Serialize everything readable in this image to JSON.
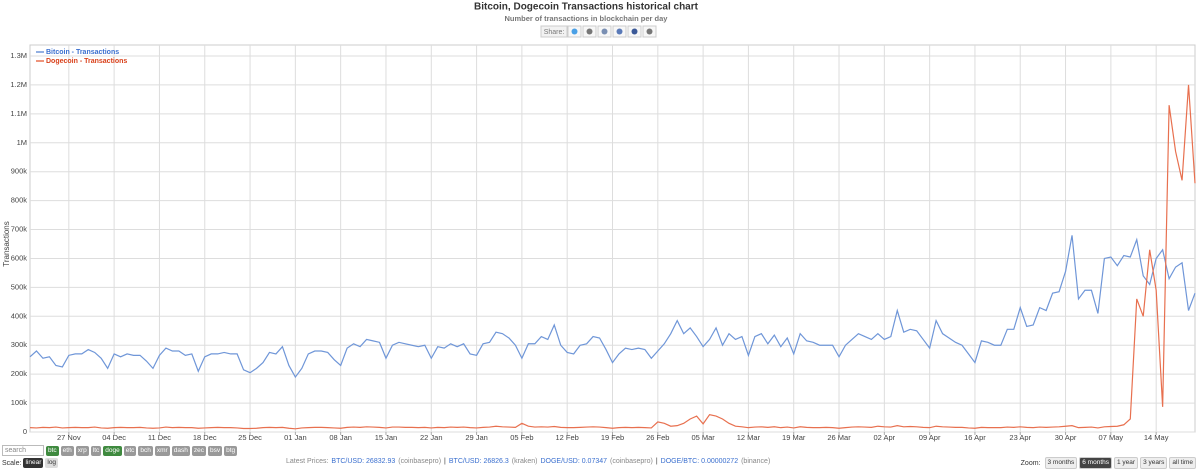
{
  "header": {
    "title": "Bitcoin, Dogecoin Transactions historical chart",
    "subtitle": "Number of transactions in blockchain per day",
    "share": "Share:"
  },
  "chart_data": {
    "type": "line",
    "y_label": "Transactions",
    "grid": true,
    "legend": "top-left",
    "categories": [
      null,
      null,
      null,
      null,
      null,
      null,
      "27 Nov",
      null,
      null,
      null,
      null,
      null,
      null,
      "04 Dec",
      null,
      null,
      null,
      null,
      null,
      null,
      "11 Dec",
      null,
      null,
      null,
      null,
      null,
      null,
      "18 Dec",
      null,
      null,
      null,
      null,
      null,
      null,
      "25 Dec",
      null,
      null,
      null,
      null,
      null,
      null,
      "01 Jan",
      null,
      null,
      null,
      null,
      null,
      null,
      "08 Jan",
      null,
      null,
      null,
      null,
      null,
      null,
      "15 Jan",
      null,
      null,
      null,
      null,
      null,
      null,
      "22 Jan",
      null,
      null,
      null,
      null,
      null,
      null,
      "29 Jan",
      null,
      null,
      null,
      null,
      null,
      null,
      "05 Feb",
      null,
      null,
      null,
      null,
      null,
      null,
      "12 Feb",
      null,
      null,
      null,
      null,
      null,
      null,
      "19 Feb",
      null,
      null,
      null,
      null,
      null,
      null,
      "26 Feb",
      null,
      null,
      null,
      null,
      null,
      null,
      "05 Mar",
      null,
      null,
      null,
      null,
      null,
      null,
      "12 Mar",
      null,
      null,
      null,
      null,
      null,
      null,
      "19 Mar",
      null,
      null,
      null,
      null,
      null,
      null,
      "26 Mar",
      null,
      null,
      null,
      null,
      null,
      null,
      "02 Apr",
      null,
      null,
      null,
      null,
      null,
      null,
      "09 Apr",
      null,
      null,
      null,
      null,
      null,
      null,
      "16 Apr",
      null,
      null,
      null,
      null,
      null,
      null,
      "23 Apr",
      null,
      null,
      null,
      null,
      null,
      null,
      "30 Apr",
      null,
      null,
      null,
      null,
      null,
      null,
      "07 May",
      null,
      null,
      null,
      null,
      null,
      null,
      "14 May",
      null,
      null,
      null,
      null,
      null,
      null
    ],
    "series": [
      {
        "name": "Bitcoin - Transactions",
        "color": "#6f96d8",
        "label_color": "#3a6fcf",
        "values": [
          260000,
          280000,
          255000,
          260000,
          230000,
          225000,
          265000,
          270000,
          270000,
          285000,
          275000,
          255000,
          220000,
          270000,
          260000,
          270000,
          265000,
          265000,
          245000,
          220000,
          265000,
          290000,
          280000,
          280000,
          265000,
          270000,
          210000,
          260000,
          270000,
          270000,
          275000,
          270000,
          270000,
          215000,
          205000,
          220000,
          240000,
          275000,
          270000,
          295000,
          230000,
          190000,
          220000,
          270000,
          280000,
          280000,
          275000,
          250000,
          230000,
          290000,
          305000,
          295000,
          320000,
          315000,
          310000,
          255000,
          300000,
          310000,
          305000,
          300000,
          295000,
          300000,
          255000,
          295000,
          290000,
          305000,
          295000,
          305000,
          270000,
          265000,
          305000,
          310000,
          345000,
          340000,
          325000,
          300000,
          255000,
          305000,
          305000,
          330000,
          320000,
          370000,
          300000,
          275000,
          270000,
          300000,
          305000,
          330000,
          325000,
          285000,
          240000,
          270000,
          290000,
          285000,
          290000,
          285000,
          255000,
          280000,
          305000,
          340000,
          385000,
          340000,
          360000,
          330000,
          295000,
          320000,
          360000,
          300000,
          340000,
          320000,
          330000,
          265000,
          330000,
          340000,
          305000,
          335000,
          295000,
          325000,
          270000,
          340000,
          315000,
          310000,
          300000,
          300000,
          300000,
          260000,
          300000,
          320000,
          340000,
          330000,
          320000,
          340000,
          320000,
          330000,
          420000,
          345000,
          355000,
          350000,
          320000,
          290000,
          385000,
          340000,
          325000,
          310000,
          300000,
          270000,
          240000,
          315000,
          310000,
          300000,
          300000,
          355000,
          355000,
          430000,
          365000,
          370000,
          430000,
          420000,
          480000,
          485000,
          555000,
          680000,
          460000,
          490000,
          490000,
          410000,
          600000,
          605000,
          575000,
          610000,
          605000,
          665000,
          540000,
          510000,
          600000,
          630000,
          530000,
          570000,
          585000,
          420000,
          480000
        ]
      },
      {
        "name": "Dogecoin - Transactions",
        "color": "#e8704f",
        "label_color": "#d9401a",
        "values": [
          15000,
          14000,
          16000,
          15000,
          17000,
          14000,
          15000,
          16000,
          15000,
          15000,
          17000,
          14000,
          13000,
          15000,
          16000,
          15000,
          15000,
          16000,
          14000,
          13000,
          14000,
          17000,
          15000,
          16000,
          15000,
          15000,
          13000,
          14000,
          15000,
          16000,
          15000,
          15000,
          14000,
          12000,
          12000,
          13000,
          15000,
          16000,
          15000,
          16000,
          13000,
          11000,
          14000,
          15000,
          16000,
          16000,
          15000,
          14000,
          13000,
          16000,
          17000,
          16000,
          18000,
          17000,
          16000,
          14000,
          17000,
          17000,
          16000,
          16000,
          15000,
          16000,
          14000,
          16000,
          15000,
          17000,
          16000,
          17000,
          15000,
          14000,
          16000,
          17000,
          20000,
          18000,
          17000,
          16000,
          30000,
          20000,
          17000,
          18000,
          17000,
          19000,
          16000,
          15000,
          15000,
          16000,
          17000,
          18000,
          17000,
          15000,
          13000,
          15000,
          16000,
          15000,
          16000,
          15000,
          14000,
          35000,
          30000,
          20000,
          22000,
          30000,
          45000,
          55000,
          28000,
          60000,
          55000,
          45000,
          30000,
          20000,
          18000,
          15000,
          17000,
          18000,
          16000,
          18000,
          15000,
          17000,
          14000,
          18000,
          16000,
          15000,
          15000,
          16000,
          15000,
          13000,
          15000,
          17000,
          18000,
          17000,
          16000,
          20000,
          18000,
          17000,
          22000,
          18000,
          19000,
          18000,
          16000,
          15000,
          20000,
          18000,
          17000,
          16000,
          16000,
          14000,
          13000,
          16000,
          15000,
          15000,
          15000,
          17000,
          16000,
          18000,
          16000,
          15000,
          17000,
          16000,
          17000,
          18000,
          20000,
          22000,
          15000,
          16000,
          17000,
          14000,
          18000,
          19000,
          20000,
          25000,
          45000,
          460000,
          400000,
          630000,
          490000,
          87000,
          1130000,
          970000,
          870000,
          1200000,
          860000
        ]
      }
    ],
    "ylim": [
      0,
      1300000
    ],
    "yticks": [
      0,
      {
        "value": 100000,
        "label": "100k"
      },
      {
        "value": 200000,
        "label": "200k"
      },
      {
        "value": 300000,
        "label": "300k"
      },
      {
        "value": 400000,
        "label": "400k"
      },
      {
        "value": 500000,
        "label": "500k"
      },
      {
        "value": 600000,
        "label": "600k"
      },
      {
        "value": 700000,
        "label": "700k"
      },
      {
        "value": 800000,
        "label": "800k"
      },
      {
        "value": 900000,
        "label": "900k"
      },
      {
        "value": 1000000,
        "label": "1M"
      },
      {
        "value": 1100000,
        "label": "1.1M"
      },
      {
        "value": 1200000,
        "label": "1.2M"
      },
      {
        "value": 1300000,
        "label": "1.3M"
      }
    ]
  },
  "controls": {
    "search": "search",
    "coins": [
      "btc",
      "eth",
      "xrp",
      "ltc",
      "doge",
      "etc",
      "bch",
      "xmr",
      "dash",
      "zec",
      "bsv",
      "btg"
    ],
    "coins_active": [
      true,
      false,
      false,
      false,
      true,
      false,
      false,
      false,
      false,
      false,
      false,
      false
    ],
    "scale_label": "Scale:",
    "scales": [
      "linear",
      "log"
    ],
    "scales_active": [
      true,
      false
    ],
    "prices": [
      "Latest Prices:",
      "BTC/USD: 26832.93",
      "(coinbasepro)",
      "|",
      "BTC/USD: 26826.3",
      "(kraken)",
      "DOGE/USD: 0.07347",
      "(coinbasepro)",
      "|",
      "DOGE/BTC: 0.00000272",
      "(binance)"
    ],
    "zoom_label": "Zoom:",
    "zoom": [
      "3 months",
      "6 months",
      "1 year",
      "3 years",
      "all time"
    ],
    "zoom_active": [
      false,
      true,
      false,
      false,
      false
    ]
  }
}
